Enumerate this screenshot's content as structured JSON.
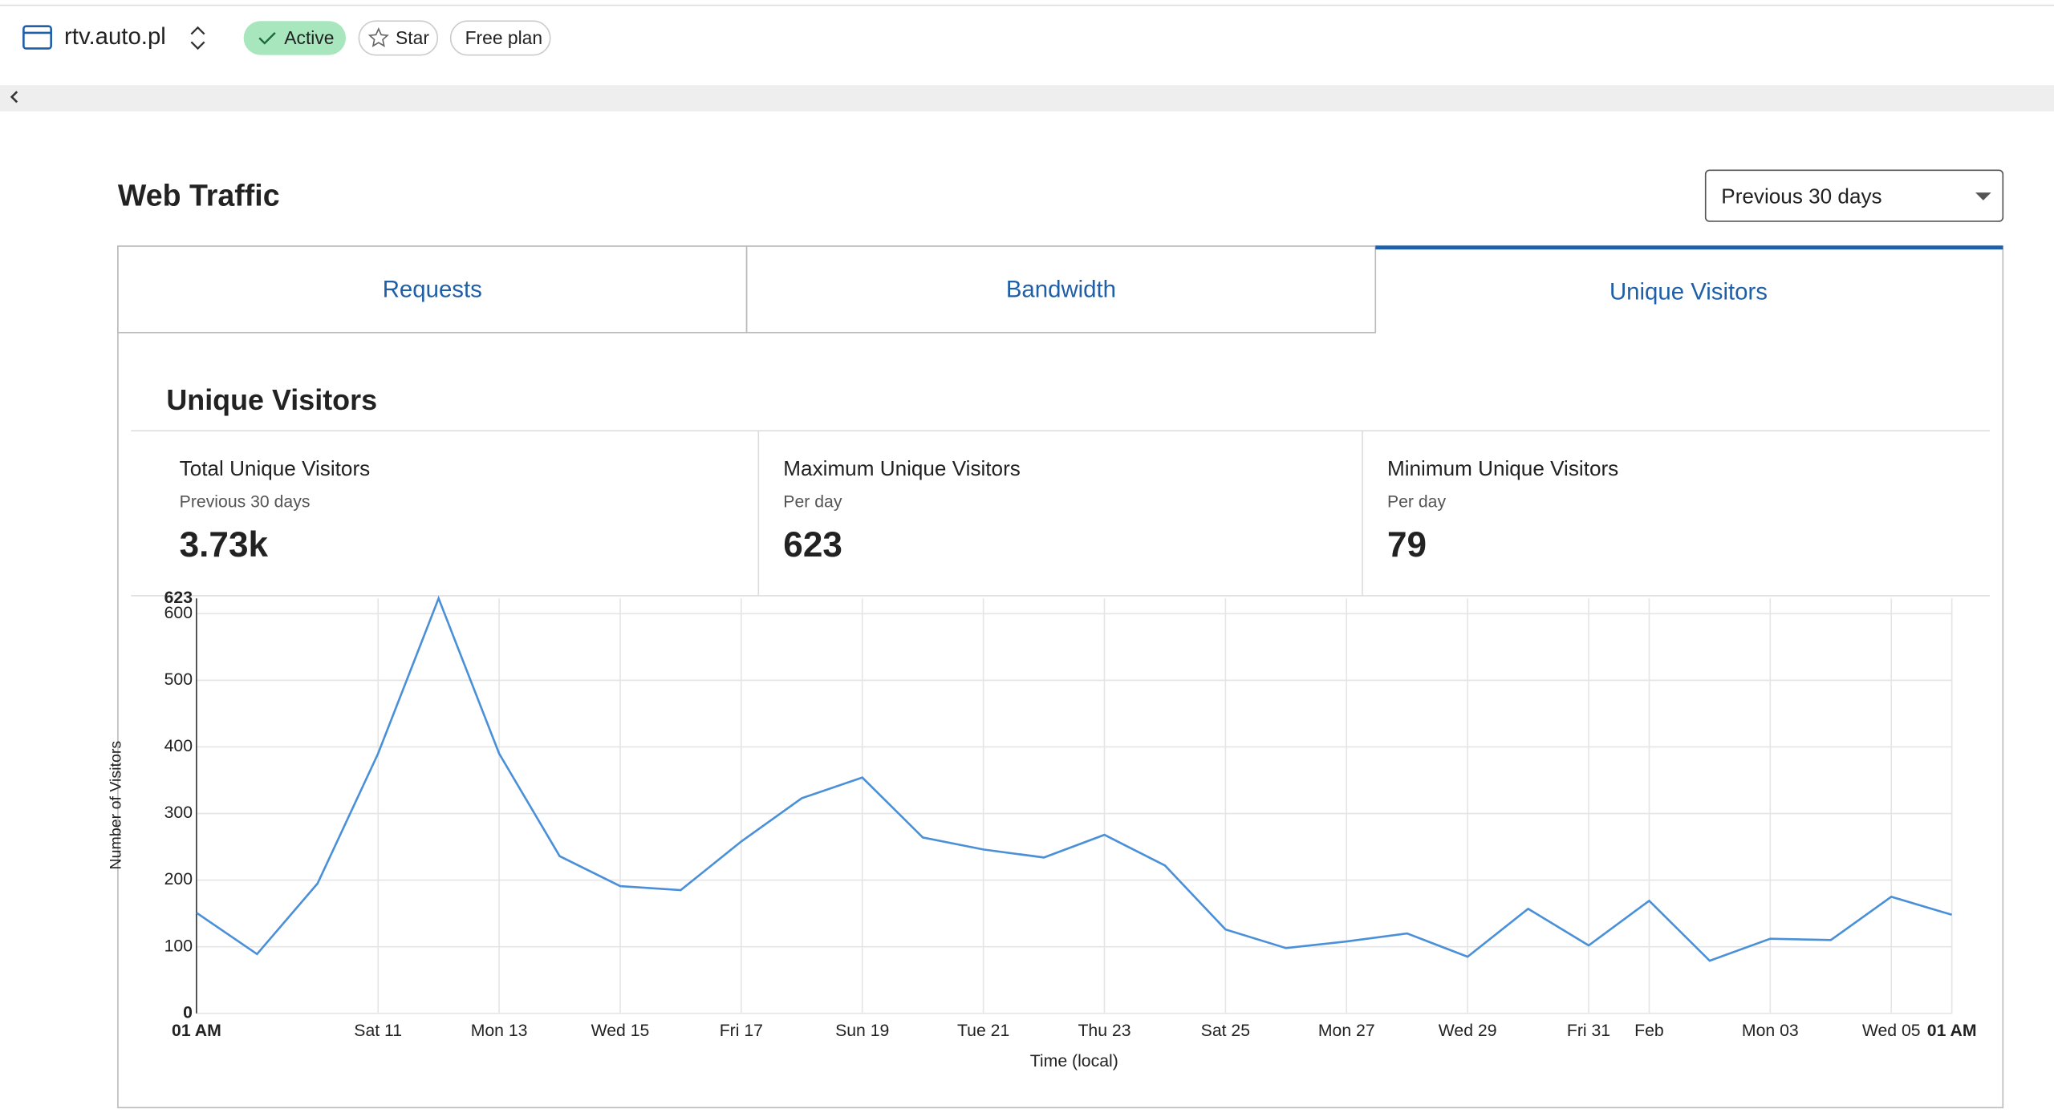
{
  "header": {
    "site": "rtv.auto.pl",
    "status": "Active",
    "star": "Star",
    "plan": "Free plan"
  },
  "page_title": "Web Traffic",
  "range": "Previous 30 days",
  "tabs": [
    "Requests",
    "Bandwidth",
    "Unique Visitors"
  ],
  "section_title": "Unique Visitors",
  "stats": [
    {
      "label": "Total Unique Visitors",
      "sub": "Previous 30 days",
      "value": "3.73k"
    },
    {
      "label": "Maximum Unique Visitors",
      "sub": "Per day",
      "value": "623"
    },
    {
      "label": "Minimum Unique Visitors",
      "sub": "Per day",
      "value": "79"
    }
  ],
  "chart_data": {
    "type": "line",
    "x_label": "Time (local)",
    "y_label": "Number of Visitors",
    "categories": [
      "01 AM",
      null,
      null,
      "Sat 11",
      null,
      "Mon 13",
      null,
      "Wed 15",
      null,
      "Fri 17",
      null,
      "Sun 19",
      null,
      "Tue 21",
      null,
      "Thu 23",
      null,
      "Sat 25",
      null,
      "Mon 27",
      null,
      "Wed 29",
      null,
      "Fri 31",
      "Feb",
      null,
      "Mon 03",
      null,
      "Wed 05",
      "01 AM"
    ],
    "series": [
      {
        "name": "Unique Visitors",
        "color": "#4a90d9",
        "values": [
          151,
          89,
          195,
          390,
          623,
          390,
          236,
          191,
          185,
          258,
          323,
          354,
          264,
          246,
          234,
          268,
          222,
          126,
          98,
          108,
          120,
          85,
          157,
          102,
          169,
          79,
          112,
          110,
          175,
          148
        ]
      }
    ],
    "ylim": [
      0,
      623
    ],
    "yticks": [
      0,
      100,
      200,
      300,
      400,
      500,
      600,
      623
    ],
    "grid": true
  }
}
